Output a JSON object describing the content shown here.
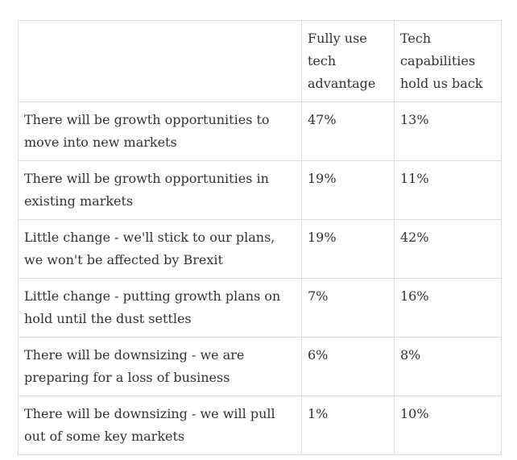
{
  "table": {
    "headers": [
      "",
      "Fully use tech advantage",
      "Tech capabilities hold us back"
    ],
    "rows": [
      {
        "label": "There will be growth opportunities to move into new markets",
        "fully_use": "47%",
        "held_back": "13%"
      },
      {
        "label": "There will be growth opportunities in existing markets",
        "fully_use": "19%",
        "held_back": "11%"
      },
      {
        "label": "Little change - we'll stick to our plans, we won't be affected by Brexit",
        "fully_use": "19%",
        "held_back": "42%"
      },
      {
        "label": "Little change - putting growth plans on hold until the dust settles",
        "fully_use": "7%",
        "held_back": "16%"
      },
      {
        "label": "There will be downsizing - we are preparing for a loss of business",
        "fully_use": "6%",
        "held_back": "8%"
      },
      {
        "label": "There will be downsizing - we will pull out of some key markets",
        "fully_use": "1%",
        "held_back": "10%"
      }
    ]
  }
}
